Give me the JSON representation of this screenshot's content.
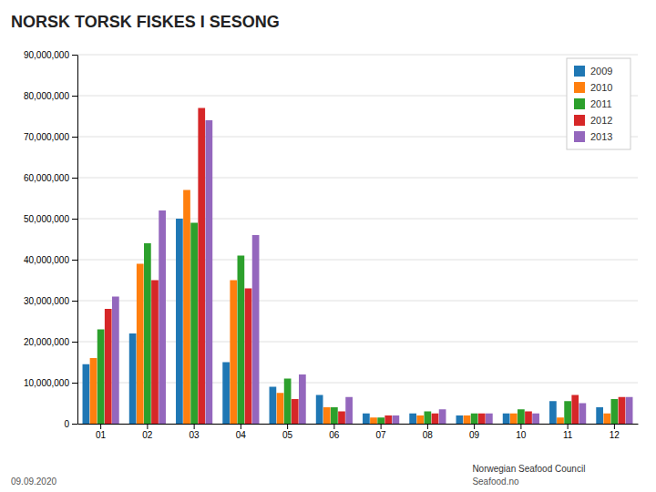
{
  "chart_data": {
    "type": "bar",
    "title": "NORSK TORSK FISKES I SESONG",
    "categories": [
      "01",
      "02",
      "03",
      "04",
      "05",
      "06",
      "07",
      "08",
      "09",
      "10",
      "11",
      "12"
    ],
    "series": [
      {
        "name": "2009",
        "values": [
          14500000,
          22000000,
          50000000,
          15000000,
          9000000,
          7000000,
          2500000,
          2500000,
          2000000,
          2500000,
          5500000,
          4000000
        ]
      },
      {
        "name": "2010",
        "values": [
          16000000,
          39000000,
          57000000,
          35000000,
          7500000,
          4000000,
          1500000,
          2000000,
          2000000,
          2500000,
          1500000,
          2500000
        ]
      },
      {
        "name": "2011",
        "values": [
          23000000,
          44000000,
          49000000,
          41000000,
          11000000,
          4000000,
          1500000,
          3000000,
          2500000,
          3500000,
          5500000,
          6000000
        ]
      },
      {
        "name": "2012",
        "values": [
          28000000,
          35000000,
          77000000,
          33000000,
          6000000,
          3000000,
          2000000,
          2500000,
          2500000,
          3000000,
          7000000,
          6500000
        ]
      },
      {
        "name": "2013",
        "values": [
          31000000,
          52000000,
          74000000,
          46000000,
          12000000,
          6500000,
          2000000,
          3500000,
          2500000,
          2500000,
          5000000,
          6500000
        ]
      }
    ],
    "ylim": [
      0,
      90000000
    ],
    "yticks": [
      0,
      {
        "value": 10000000,
        "label": "10,000,000"
      },
      {
        "value": 20000000,
        "label": "20,000,000"
      },
      {
        "value": 30000000,
        "label": "30,000,000"
      },
      {
        "value": 40000000,
        "label": "40,000,000"
      },
      {
        "value": 50000000,
        "label": "50,000,000"
      },
      {
        "value": 60000000,
        "label": "60,000,000"
      },
      {
        "value": 70000000,
        "label": "70,000,000"
      },
      {
        "value": 80000000,
        "label": "80,000,000"
      },
      {
        "value": 90000000,
        "label": "90,000,000"
      }
    ],
    "grid": true,
    "legend": "top-right",
    "annotations": [
      "09.09.2020",
      "Norwegian Seafood Council",
      "Seafood.no"
    ]
  }
}
